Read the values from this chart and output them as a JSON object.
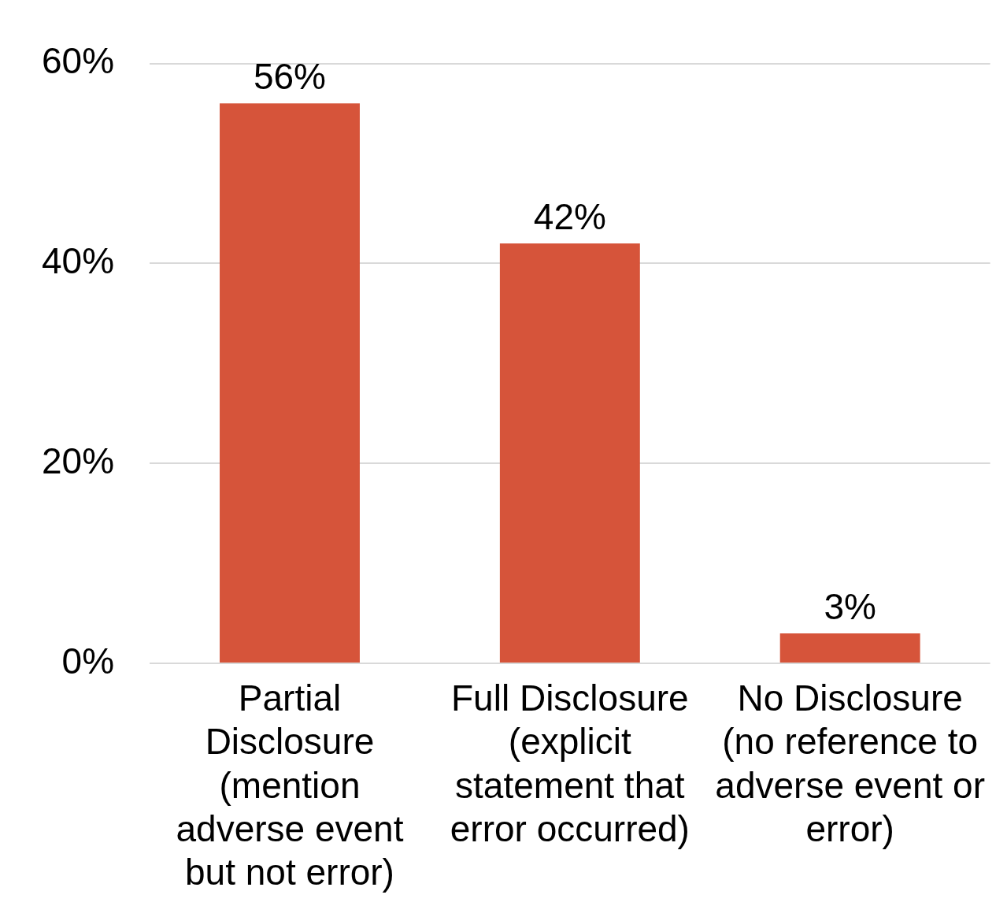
{
  "chart_data": {
    "type": "bar",
    "categories": [
      "Partial Disclosure (mention adverse event but not error)",
      "Full Disclosure (explicit statement that error occurred)",
      "No Disclosure (no reference to adverse event or error)"
    ],
    "values": [
      56,
      42,
      3
    ],
    "value_labels": [
      "56%",
      "42%",
      "3%"
    ],
    "color": "#d6543a",
    "ylim": [
      0,
      60
    ],
    "yticks": [
      {
        "value": 0,
        "label": "0%"
      },
      {
        "value": 20,
        "label": "20%"
      },
      {
        "value": 40,
        "label": "40%"
      },
      {
        "value": 60,
        "label": "60%"
      }
    ],
    "grid": "y",
    "legend": false
  }
}
